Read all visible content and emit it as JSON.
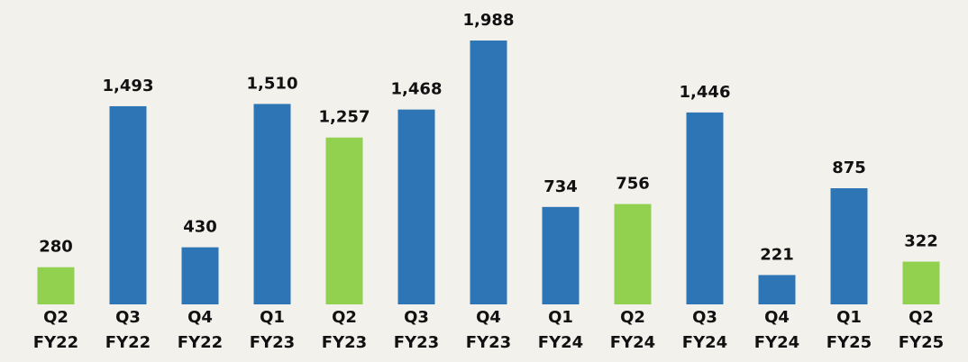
{
  "chart_data": {
    "type": "bar",
    "categories": [
      [
        "Q2",
        "FY22"
      ],
      [
        "Q3",
        "FY22"
      ],
      [
        "Q4",
        "FY22"
      ],
      [
        "Q1",
        "FY23"
      ],
      [
        "Q2",
        "FY23"
      ],
      [
        "Q3",
        "FY23"
      ],
      [
        "Q4",
        "FY23"
      ],
      [
        "Q1",
        "FY24"
      ],
      [
        "Q2",
        "FY24"
      ],
      [
        "Q3",
        "FY24"
      ],
      [
        "Q4",
        "FY24"
      ],
      [
        "Q1",
        "FY25"
      ],
      [
        "Q2",
        "FY25"
      ]
    ],
    "values": [
      280,
      1493,
      430,
      1510,
      1257,
      1468,
      1988,
      734,
      756,
      1446,
      221,
      875,
      322
    ],
    "value_labels": [
      "280",
      "1,493",
      "430",
      "1,510",
      "1,257",
      "1,468",
      "1,988",
      "734",
      "756",
      "1,446",
      "221",
      "875",
      "322"
    ],
    "colors": [
      "#92d050",
      "#2e75b6",
      "#2e75b6",
      "#2e75b6",
      "#92d050",
      "#2e75b6",
      "#2e75b6",
      "#2e75b6",
      "#92d050",
      "#2e75b6",
      "#2e75b6",
      "#2e75b6",
      "#92d050"
    ]
  }
}
